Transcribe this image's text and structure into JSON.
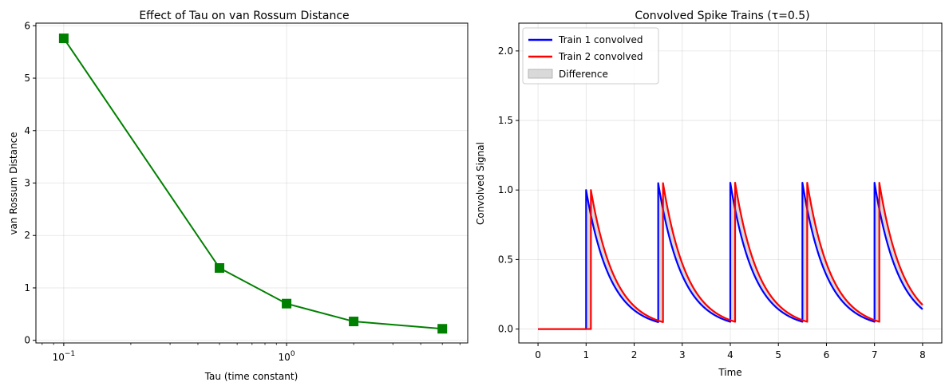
{
  "chart_data": [
    {
      "type": "line",
      "title": "Effect of Tau on van Rossum Distance",
      "xlabel": "Tau (time constant)",
      "ylabel": "van Rossum Distance",
      "xscale": "log",
      "xlim": [
        0.075,
        6.5
      ],
      "ylim": [
        -0.05,
        6.05
      ],
      "xticks": [
        {
          "value": 0.1,
          "base": "10",
          "exp": "−1"
        },
        {
          "value": 1,
          "base": "10",
          "exp": "0"
        }
      ],
      "yticks": [
        0,
        1,
        2,
        3,
        4,
        5,
        6
      ],
      "grid": true,
      "series": [
        {
          "color": "#008000",
          "marker": "square",
          "x": [
            0.1,
            0.5,
            1,
            2,
            5
          ],
          "y": [
            5.76,
            1.38,
            0.7,
            0.36,
            0.22
          ]
        }
      ]
    },
    {
      "type": "line",
      "title": "Convolved Spike Trains (τ=0.5)",
      "xlabel": "Time",
      "ylabel": "Convolved Signal",
      "xlim": [
        -0.4,
        8.4
      ],
      "ylim": [
        -0.1,
        2.2
      ],
      "xticks": [
        0,
        1,
        2,
        3,
        4,
        5,
        6,
        7,
        8
      ],
      "yticks": [
        0.0,
        0.5,
        1.0,
        1.5,
        2.0
      ],
      "grid": true,
      "legend": "top-left",
      "tau": 0.5,
      "t_end": 8,
      "series": [
        {
          "name": "Train 1 convolved",
          "color": "#0000ff",
          "spikes": [
            1.0,
            2.5,
            4.0,
            5.5,
            7.0
          ]
        },
        {
          "name": "Train 2 convolved",
          "color": "#ff0000",
          "spikes": [
            1.1,
            2.6,
            4.1,
            5.6,
            7.1
          ]
        }
      ],
      "fill": {
        "name": "Difference",
        "color": "#bfbfbf"
      }
    }
  ]
}
